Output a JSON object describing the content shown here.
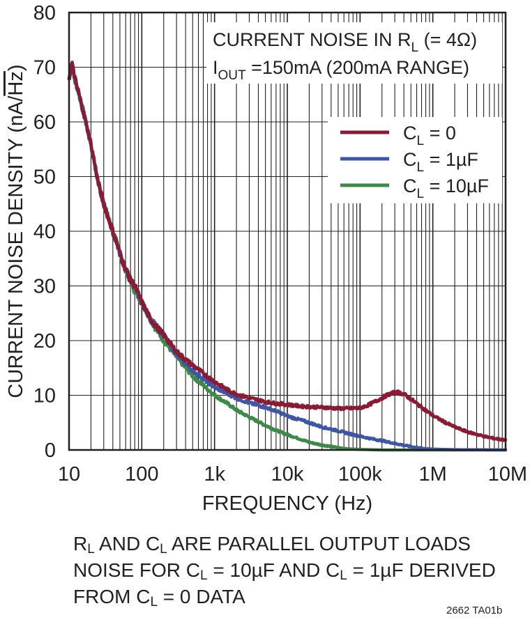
{
  "chart_data": {
    "type": "line",
    "xscale": "log",
    "xlim": [
      10,
      10000000
    ],
    "ylim": [
      0,
      80
    ],
    "ylabel_parts": {
      "text": "CURRENT NOISE DENSITY (nA/",
      "radicand": "Hz",
      "close": ")"
    },
    "xlabel": "FREQUENCY (Hz)",
    "x_tick_labels": [
      {
        "x": 10,
        "label": "10"
      },
      {
        "x": 100,
        "label": "100"
      },
      {
        "x": 1000,
        "label": "1k"
      },
      {
        "x": 10000,
        "label": "10k"
      },
      {
        "x": 100000,
        "label": "100k"
      },
      {
        "x": 1000000,
        "label": "1M"
      },
      {
        "x": 10000000,
        "label": "10M"
      }
    ],
    "y_tick_labels": [
      {
        "y": 0,
        "label": "0"
      },
      {
        "y": 10,
        "label": "10"
      },
      {
        "y": 20,
        "label": "20"
      },
      {
        "y": 30,
        "label": "30"
      },
      {
        "y": 40,
        "label": "40"
      },
      {
        "y": 50,
        "label": "50"
      },
      {
        "y": 60,
        "label": "60"
      },
      {
        "y": 70,
        "label": "70"
      },
      {
        "y": 80,
        "label": "80"
      }
    ],
    "annotation": {
      "line1": {
        "main": "CURRENT NOISE IN R",
        "sub": "L",
        "rest": " (= 4Ω)"
      },
      "line2": {
        "main": "I",
        "sub": "OUT",
        "rest": " =150mA (200mA RANGE)"
      }
    },
    "series": [
      {
        "name": "CL = 0",
        "label_main": "C",
        "label_sub": "L",
        "label_rest": " = 0",
        "color": "#8b1a33",
        "points": [
          [
            10,
            68
          ],
          [
            11,
            70.5
          ],
          [
            12,
            68
          ],
          [
            15,
            63
          ],
          [
            20,
            56
          ],
          [
            25,
            49
          ],
          [
            30,
            45
          ],
          [
            40,
            40
          ],
          [
            50,
            36
          ],
          [
            60,
            33
          ],
          [
            70,
            31
          ],
          [
            80,
            30
          ],
          [
            100,
            27
          ],
          [
            130,
            24
          ],
          [
            150,
            23
          ],
          [
            200,
            21
          ],
          [
            300,
            18
          ],
          [
            400,
            16.5
          ],
          [
            500,
            15.5
          ],
          [
            700,
            14
          ],
          [
            1000,
            12.5
          ],
          [
            1500,
            11
          ],
          [
            2000,
            10.2
          ],
          [
            3000,
            9.5
          ],
          [
            5000,
            8.8
          ],
          [
            7000,
            8.5
          ],
          [
            10000,
            8.3
          ],
          [
            15000,
            8
          ],
          [
            20000,
            7.9
          ],
          [
            30000,
            7.8
          ],
          [
            50000,
            7.6
          ],
          [
            70000,
            7.6
          ],
          [
            100000,
            7.7
          ],
          [
            130000,
            8.2
          ],
          [
            180000,
            9.2
          ],
          [
            250000,
            10.2
          ],
          [
            320000,
            10.6
          ],
          [
            400000,
            10.2
          ],
          [
            500000,
            9.3
          ],
          [
            700000,
            7.8
          ],
          [
            1000000,
            6.3
          ],
          [
            1500000,
            5
          ],
          [
            2000000,
            4.2
          ],
          [
            3000000,
            3.3
          ],
          [
            5000000,
            2.5
          ],
          [
            7000000,
            2.1
          ],
          [
            10000000,
            1.8
          ]
        ]
      },
      {
        "name": "CL = 1µF",
        "label_main": "C",
        "label_sub": "L",
        "label_rest": " = 1µF",
        "color": "#3d56a6",
        "points": [
          [
            10,
            68
          ],
          [
            11,
            70.5
          ],
          [
            12,
            68
          ],
          [
            15,
            63
          ],
          [
            20,
            56
          ],
          [
            25,
            49
          ],
          [
            30,
            45
          ],
          [
            40,
            40
          ],
          [
            50,
            36
          ],
          [
            60,
            33
          ],
          [
            70,
            31
          ],
          [
            80,
            30
          ],
          [
            100,
            27
          ],
          [
            130,
            24
          ],
          [
            150,
            23
          ],
          [
            200,
            21
          ],
          [
            300,
            17.5
          ],
          [
            400,
            15.8
          ],
          [
            500,
            14.5
          ],
          [
            700,
            13
          ],
          [
            1000,
            11.5
          ],
          [
            1500,
            10.3
          ],
          [
            2000,
            9.5
          ],
          [
            3000,
            8.6
          ],
          [
            5000,
            7.8
          ],
          [
            7000,
            7.1
          ],
          [
            10000,
            6.2
          ],
          [
            15000,
            5.5
          ],
          [
            20000,
            5
          ],
          [
            30000,
            4.2
          ],
          [
            50000,
            3.5
          ],
          [
            70000,
            3
          ],
          [
            100000,
            2.5
          ],
          [
            150000,
            2
          ],
          [
            200000,
            1.7
          ],
          [
            300000,
            1.2
          ],
          [
            500000,
            0.6
          ],
          [
            700000,
            0.3
          ],
          [
            1000000,
            0.15
          ],
          [
            2000000,
            0.05
          ],
          [
            10000000,
            0
          ]
        ]
      },
      {
        "name": "CL = 10µF",
        "label_main": "C",
        "label_sub": "L",
        "label_rest": " = 10µF",
        "color": "#3b8a46",
        "points": [
          [
            10,
            68
          ],
          [
            11,
            70.5
          ],
          [
            12,
            68
          ],
          [
            15,
            63
          ],
          [
            20,
            56
          ],
          [
            25,
            49
          ],
          [
            30,
            45
          ],
          [
            40,
            40
          ],
          [
            50,
            36
          ],
          [
            60,
            33
          ],
          [
            70,
            31
          ],
          [
            80,
            29
          ],
          [
            100,
            27
          ],
          [
            130,
            24
          ],
          [
            150,
            22.5
          ],
          [
            200,
            20
          ],
          [
            300,
            17
          ],
          [
            400,
            15
          ],
          [
            500,
            13.5
          ],
          [
            700,
            11.8
          ],
          [
            1000,
            10
          ],
          [
            1500,
            8.5
          ],
          [
            2000,
            7.3
          ],
          [
            3000,
            6
          ],
          [
            5000,
            4.5
          ],
          [
            7000,
            3.6
          ],
          [
            10000,
            2.8
          ],
          [
            15000,
            2
          ],
          [
            20000,
            1.4
          ],
          [
            30000,
            0.9
          ],
          [
            50000,
            0.4
          ],
          [
            70000,
            0.2
          ],
          [
            100000,
            0.1
          ],
          [
            200000,
            0
          ],
          [
            10000000,
            0
          ]
        ]
      }
    ],
    "legend_position": "right, below annotation"
  },
  "footnote": {
    "line1": {
      "p1": "R",
      "s1": "L",
      "p2": " AND C",
      "s2": "L",
      "p3": " ARE PARALLEL OUTPUT LOADS"
    },
    "line2": {
      "p1": "NOISE FOR C",
      "s1": "L",
      "p2": " = 10µF AND C",
      "s2": "L",
      "p3": " = 1µF DERIVED"
    },
    "line3": {
      "p1": "FROM C",
      "s1": "L",
      "p2": " = 0 DATA"
    }
  },
  "figure_code": "2662 TA01b"
}
